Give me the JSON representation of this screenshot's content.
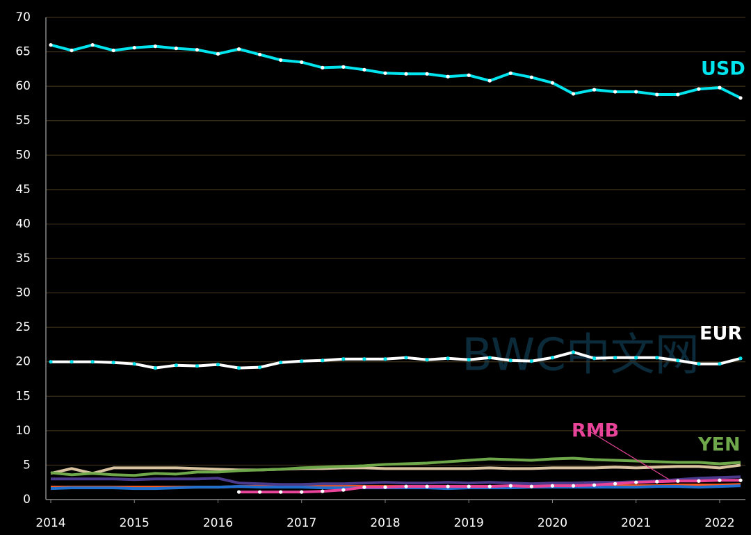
{
  "chart_data": {
    "type": "line",
    "x": [
      2014,
      2014.25,
      2014.5,
      2014.75,
      2015,
      2015.25,
      2015.5,
      2015.75,
      2016,
      2016.25,
      2016.5,
      2016.75,
      2017,
      2017.25,
      2017.5,
      2017.75,
      2018,
      2018.25,
      2018.5,
      2018.75,
      2019,
      2019.25,
      2019.5,
      2019.75,
      2020,
      2020.25,
      2020.5,
      2020.75,
      2021,
      2021.25,
      2021.5,
      2021.75,
      2022,
      2022.25
    ],
    "xlim": [
      2014,
      2022.25
    ],
    "xticks": [
      2014,
      2015,
      2016,
      2017,
      2018,
      2019,
      2020,
      2021,
      2022
    ],
    "ylim": [
      0,
      70
    ],
    "yticks": [
      0,
      5,
      10,
      15,
      20,
      25,
      30,
      35,
      40,
      45,
      50,
      55,
      60,
      65,
      70
    ],
    "grid": true,
    "watermark": "BWC中文网",
    "series": [
      {
        "color": "#ff5a1e",
        "values": [
          1.8,
          1.8,
          1.8,
          1.8,
          1.8,
          1.8,
          1.8,
          1.8,
          1.8,
          1.9,
          1.9,
          1.9,
          1.9,
          1.9,
          1.9,
          1.9,
          1.9,
          1.9,
          1.9,
          1.9,
          1.9,
          1.9,
          1.9,
          1.9,
          2.0,
          2.0,
          2.0,
          2.0,
          2.0,
          2.0,
          2.1,
          2.1,
          2.1,
          2.2
        ]
      },
      {
        "color": "#1f6fd0",
        "values": [
          1.6,
          1.7,
          1.7,
          1.7,
          1.6,
          1.6,
          1.7,
          1.8,
          1.8,
          1.9,
          1.8,
          1.8,
          1.8,
          1.7,
          1.7,
          1.7,
          1.7,
          1.7,
          1.7,
          1.6,
          1.7,
          1.7,
          1.7,
          1.8,
          1.8,
          1.8,
          1.8,
          1.8,
          1.8,
          1.9,
          1.9,
          1.8,
          1.9,
          2.0
        ]
      },
      {
        "color": "#4a3a8c",
        "values": [
          3.0,
          3.0,
          3.0,
          3.0,
          2.9,
          3.0,
          3.0,
          3.0,
          3.1,
          2.4,
          2.3,
          2.2,
          2.2,
          2.3,
          2.3,
          2.4,
          2.5,
          2.4,
          2.4,
          2.5,
          2.4,
          2.5,
          2.4,
          2.3,
          2.4,
          2.4,
          2.5,
          2.5,
          2.6,
          2.7,
          2.9,
          3.1,
          3.2,
          3.3
        ]
      },
      {
        "color": "#d9c3a0",
        "values": [
          3.8,
          4.5,
          3.8,
          4.6,
          4.6,
          4.6,
          4.6,
          4.5,
          4.4,
          4.3,
          4.3,
          4.4,
          4.5,
          4.5,
          4.6,
          4.6,
          4.5,
          4.5,
          4.5,
          4.5,
          4.5,
          4.6,
          4.5,
          4.5,
          4.6,
          4.6,
          4.6,
          4.7,
          4.6,
          4.7,
          4.8,
          4.8,
          4.6,
          5.0
        ]
      },
      {
        "name": "YEN",
        "color": "#6fa84a",
        "values": [
          3.9,
          3.6,
          3.8,
          3.6,
          3.5,
          3.8,
          3.7,
          4.0,
          4.0,
          4.2,
          4.3,
          4.4,
          4.6,
          4.7,
          4.8,
          4.9,
          5.1,
          5.2,
          5.3,
          5.5,
          5.7,
          5.9,
          5.8,
          5.7,
          5.9,
          6.0,
          5.8,
          5.7,
          5.6,
          5.5,
          5.4,
          5.4,
          5.2,
          5.4
        ]
      },
      {
        "name": "RMB",
        "color": "#e8449a",
        "marker_color": "#ffffff",
        "values": [
          null,
          null,
          null,
          null,
          null,
          null,
          null,
          null,
          null,
          1.1,
          1.1,
          1.1,
          1.1,
          1.2,
          1.4,
          1.8,
          1.8,
          1.9,
          1.9,
          1.9,
          1.9,
          1.9,
          2.0,
          1.9,
          2.0,
          2.0,
          2.1,
          2.3,
          2.5,
          2.6,
          2.7,
          2.7,
          2.8,
          2.8
        ]
      },
      {
        "name": "EUR",
        "color": "#ffffff",
        "marker_color": "#00e5ee",
        "values": [
          20.0,
          20.0,
          20.0,
          19.9,
          19.7,
          19.1,
          19.5,
          19.4,
          19.6,
          19.1,
          19.2,
          19.9,
          20.1,
          20.2,
          20.4,
          20.4,
          20.4,
          20.6,
          20.3,
          20.5,
          20.3,
          20.6,
          20.2,
          20.1,
          20.6,
          21.4,
          20.5,
          20.6,
          20.6,
          20.6,
          20.2,
          19.7,
          19.7,
          20.5
        ]
      },
      {
        "name": "USD",
        "color": "#00e5ee",
        "marker_color": "#ffffff",
        "values": [
          66.0,
          65.2,
          66.0,
          65.2,
          65.6,
          65.8,
          65.5,
          65.3,
          64.7,
          65.4,
          64.6,
          63.8,
          63.5,
          62.7,
          62.8,
          62.4,
          61.9,
          61.8,
          61.8,
          61.4,
          61.6,
          60.8,
          61.9,
          61.3,
          60.5,
          58.9,
          59.5,
          59.2,
          59.2,
          58.8,
          58.8,
          59.6,
          59.8,
          58.3
        ]
      }
    ]
  }
}
